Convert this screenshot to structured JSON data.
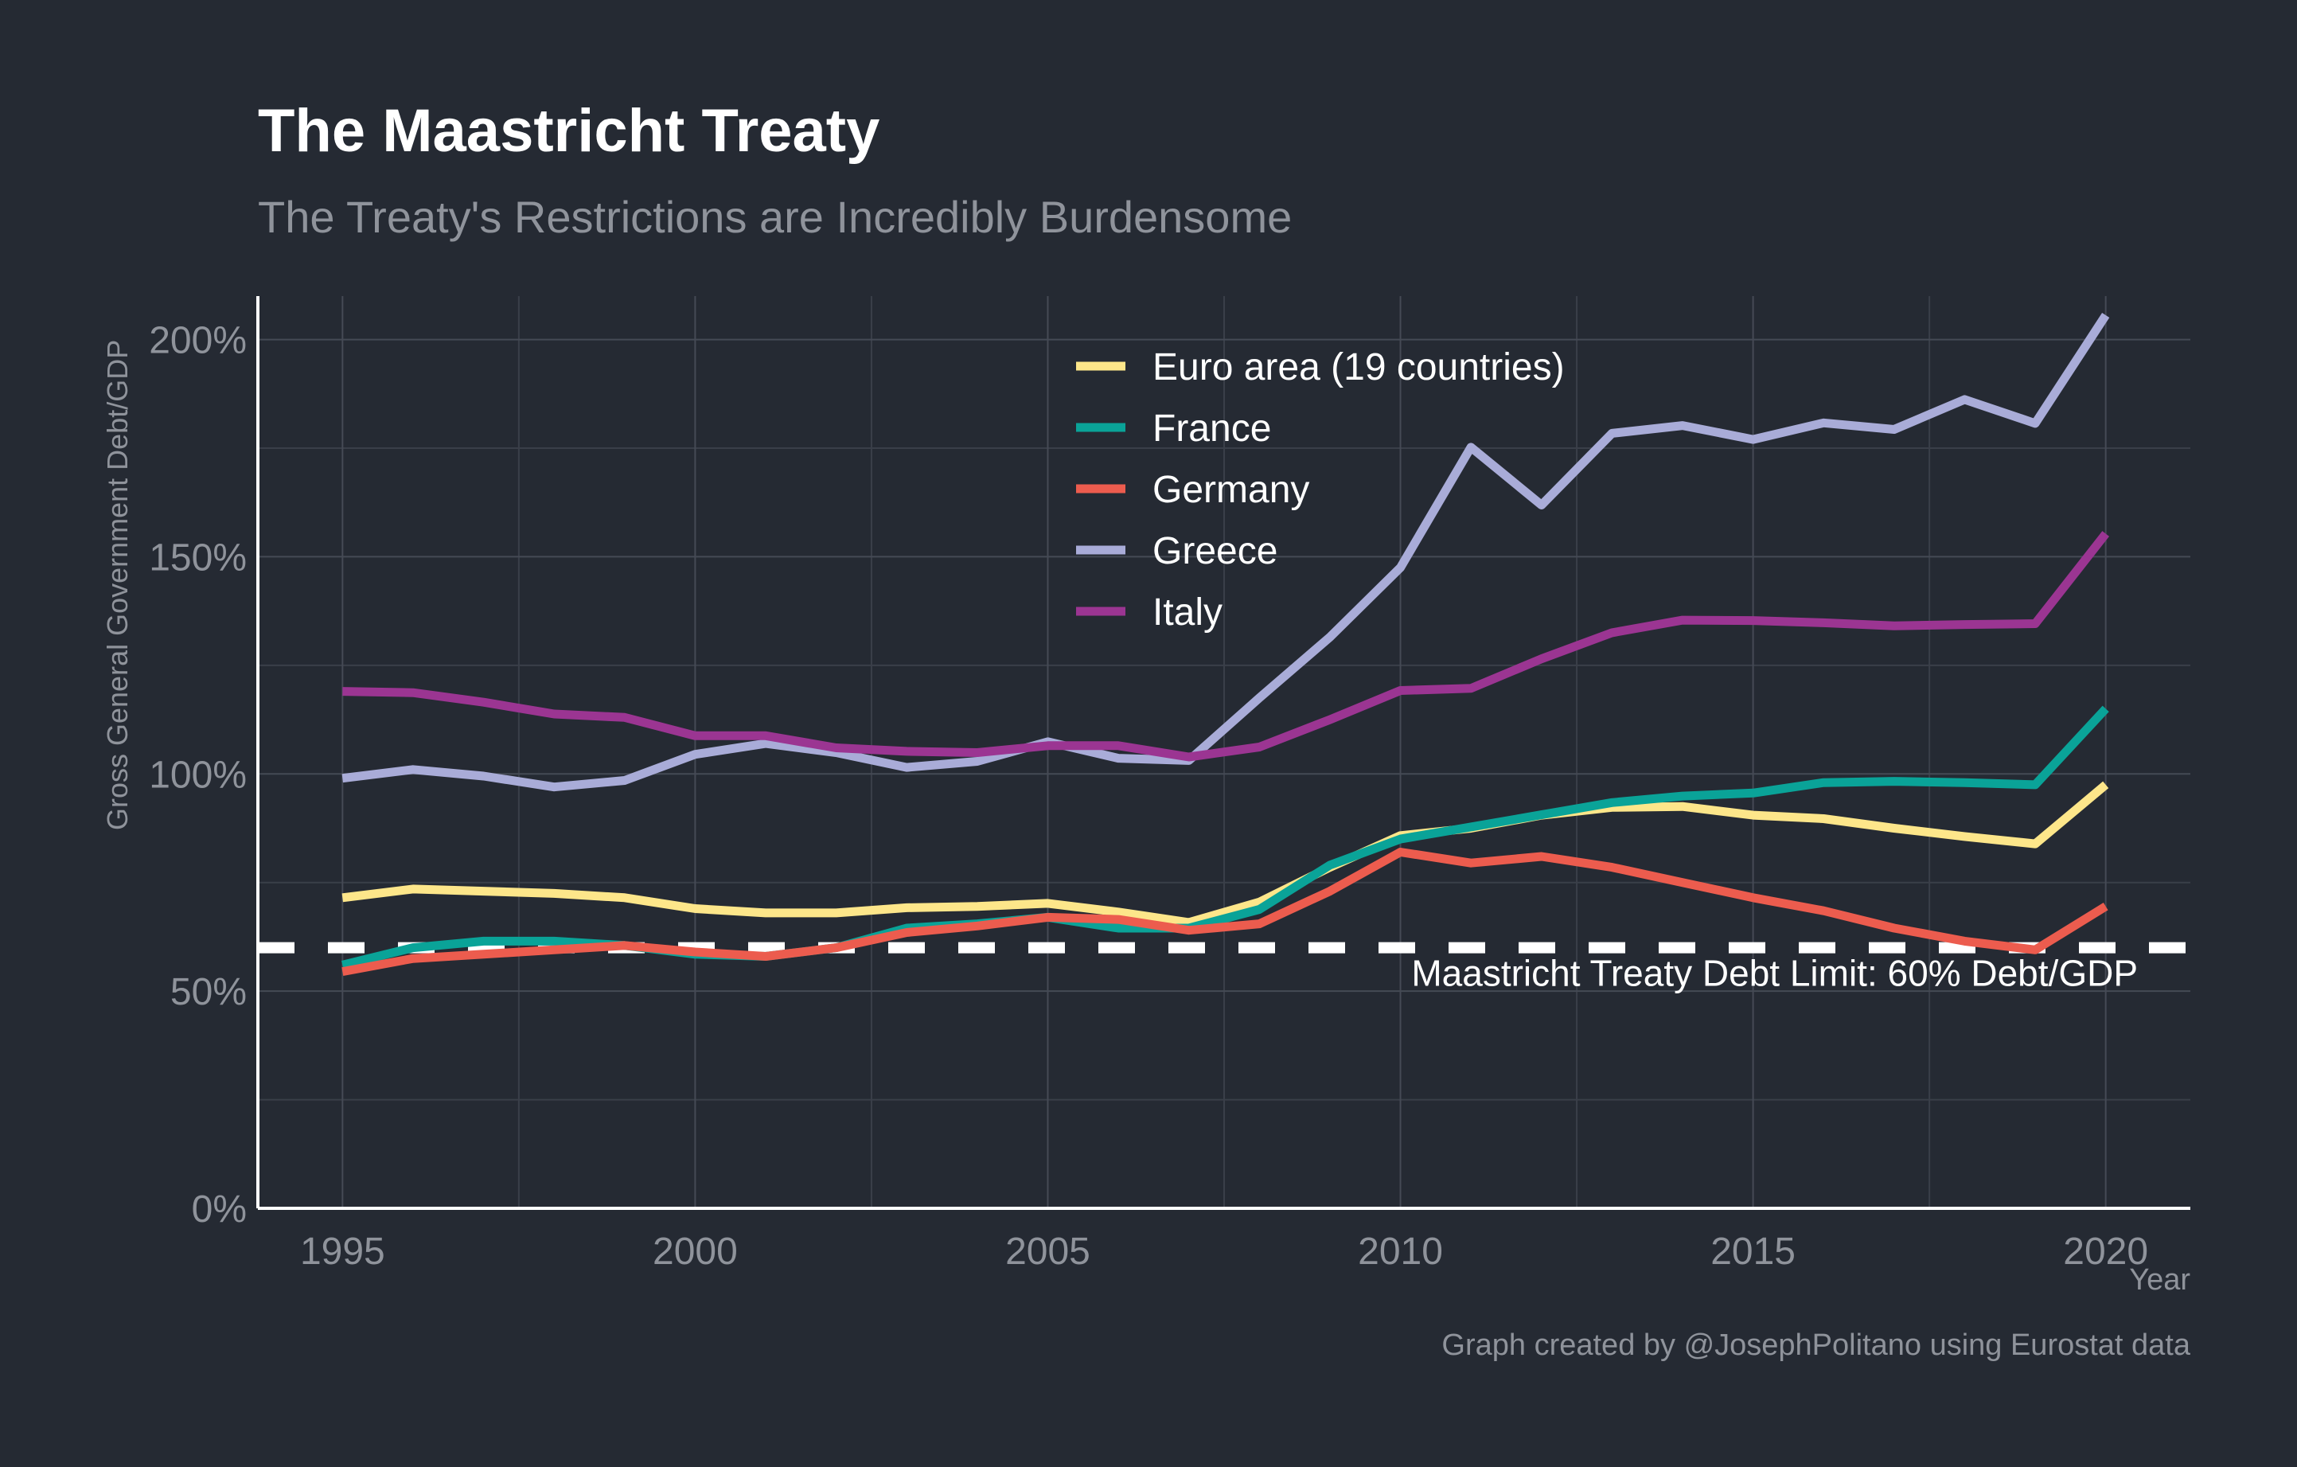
{
  "chart_data": {
    "type": "line",
    "title": "The Maastricht Treaty",
    "subtitle": "The Treaty's Restrictions are Incredibly Burdensome",
    "xlabel": "Year",
    "ylabel": "Gross General Government Debt/GDP",
    "caption": "Graph created by @JosephPolitano using Eurostat data",
    "x": [
      1995,
      1996,
      1997,
      1998,
      1999,
      2000,
      2001,
      2002,
      2003,
      2004,
      2005,
      2006,
      2007,
      2008,
      2009,
      2010,
      2011,
      2012,
      2013,
      2014,
      2015,
      2016,
      2017,
      2018,
      2019,
      2020
    ],
    "xlim": [
      1993.8,
      2021.2
    ],
    "ylim": [
      0,
      210
    ],
    "xticks": [
      1995,
      2000,
      2005,
      2010,
      2015,
      2020
    ],
    "xtick_labels": [
      "1995",
      "2000",
      "2005",
      "2010",
      "2015",
      "2020"
    ],
    "yticks": [
      0,
      50,
      100,
      150,
      200
    ],
    "ytick_labels": [
      "0%",
      "50%",
      "100%",
      "150%",
      "200%"
    ],
    "y_minor_ticks": [
      25,
      75,
      125,
      175
    ],
    "x_minor_ticks": [
      1997.5,
      2002.5,
      2007.5,
      2012.5,
      2017.5
    ],
    "grid": true,
    "legend_position": "top-center",
    "series": [
      {
        "name": "Euro area (19 countries)",
        "color": "#fde68a",
        "values": [
          71.5,
          73.5,
          73,
          72.5,
          71.5,
          69,
          68,
          68,
          69.2,
          69.5,
          70.2,
          68.2,
          65.8,
          70.5,
          78.5,
          85.8,
          87.5,
          90.5,
          92.3,
          92.5,
          90.5,
          89.7,
          87.5,
          85.6,
          83.9,
          97.5
        ]
      },
      {
        "name": "France",
        "color": "#0aa398",
        "values": [
          56,
          60,
          61.5,
          61.5,
          60.5,
          58.5,
          58,
          60,
          64.5,
          65.5,
          67,
          64.5,
          64.5,
          68.8,
          79,
          85,
          87.8,
          90.6,
          93.4,
          94.9,
          95.6,
          98,
          98.3,
          98,
          97.5,
          115
        ]
      },
      {
        "name": "Germany",
        "color": "#ec5c4e",
        "values": [
          54.5,
          57.5,
          58.5,
          59.5,
          60.5,
          59,
          58,
          60,
          63.5,
          65,
          67,
          66.5,
          64,
          65.5,
          73,
          82,
          79.5,
          81,
          78.5,
          75,
          71.5,
          68.5,
          64.5,
          61.5,
          59.5,
          69.5
        ]
      },
      {
        "name": "Greece",
        "color": "#a9acd8",
        "values": [
          99,
          101,
          99.5,
          97,
          98.5,
          104.5,
          107,
          104.9,
          101.5,
          102.9,
          107.4,
          103.6,
          103.1,
          117.5,
          131.5,
          147.5,
          175.2,
          161.9,
          178.4,
          180.2,
          177,
          180.8,
          179.3,
          186.2,
          180.7,
          205.6
        ]
      },
      {
        "name": "Italy",
        "color": "#9b3592",
        "values": [
          119,
          118.7,
          116.5,
          113.8,
          113,
          108.8,
          108.8,
          106,
          105.2,
          104.9,
          106.5,
          106.5,
          103.9,
          106.2,
          112.5,
          119.2,
          119.7,
          126.5,
          132.5,
          135.4,
          135.3,
          134.8,
          134.1,
          134.4,
          134.6,
          155.3
        ]
      }
    ],
    "reference_line": {
      "y": 60,
      "label": "Maastricht Treaty Debt Limit: 60% Debt/GDP",
      "color": "#ffffff",
      "style": "dashed"
    }
  }
}
